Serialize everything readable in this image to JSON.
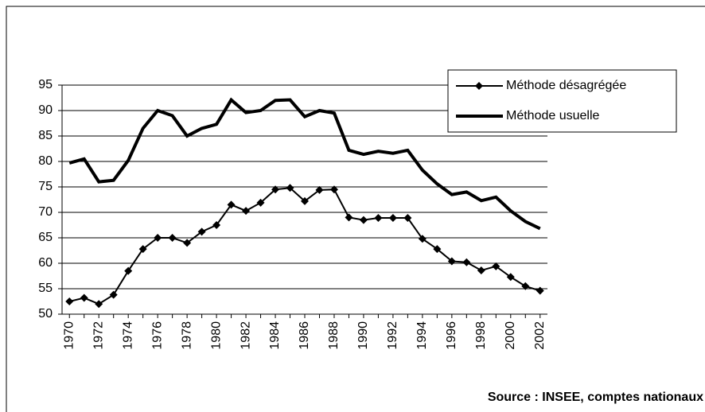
{
  "chart_data": {
    "type": "line",
    "source": "Source : INSEE, comptes nationaux",
    "categories": [
      "1970",
      null,
      "1972",
      null,
      "1974",
      null,
      "1976",
      null,
      "1978",
      null,
      "1980",
      null,
      "1982",
      null,
      "1984",
      null,
      "1986",
      null,
      "1988",
      null,
      "1990",
      null,
      "1992",
      null,
      "1994",
      null,
      "1996",
      null,
      "1998",
      null,
      "2000",
      null,
      "2002"
    ],
    "series": [
      {
        "name": "Méthode désagrégée",
        "color": "#000000",
        "marker": "diamond",
        "line_width": 2,
        "values": [
          52.5,
          53.2,
          52,
          53.8,
          58.5,
          62.8,
          65,
          65,
          64,
          66.2,
          67.5,
          71.5,
          70.3,
          71.9,
          74.5,
          74.8,
          72.2,
          74.4,
          74.5,
          69,
          68.5,
          68.9,
          68.9,
          68.9,
          64.8,
          62.8,
          60.4,
          60.2,
          58.6,
          59.4,
          57.3,
          55.5,
          54.6
        ]
      },
      {
        "name": "Méthode usuelle",
        "color": "#000000",
        "marker": "none",
        "line_width": 4,
        "values": [
          79.7,
          80.5,
          76,
          76.3,
          80.2,
          86.5,
          90,
          89,
          85,
          86.5,
          87.3,
          92.1,
          89.6,
          90,
          92,
          92.1,
          88.8,
          90,
          89.5,
          82.2,
          81.4,
          82,
          81.6,
          82.2,
          78.3,
          75.6,
          73.5,
          74,
          72.3,
          73,
          70.3,
          68.2,
          66.8
        ]
      }
    ],
    "ylim": [
      50,
      95
    ],
    "yticks": [
      50,
      55,
      60,
      65,
      70,
      75,
      80,
      85,
      90,
      95
    ],
    "grid": true,
    "legend": "top-right"
  }
}
